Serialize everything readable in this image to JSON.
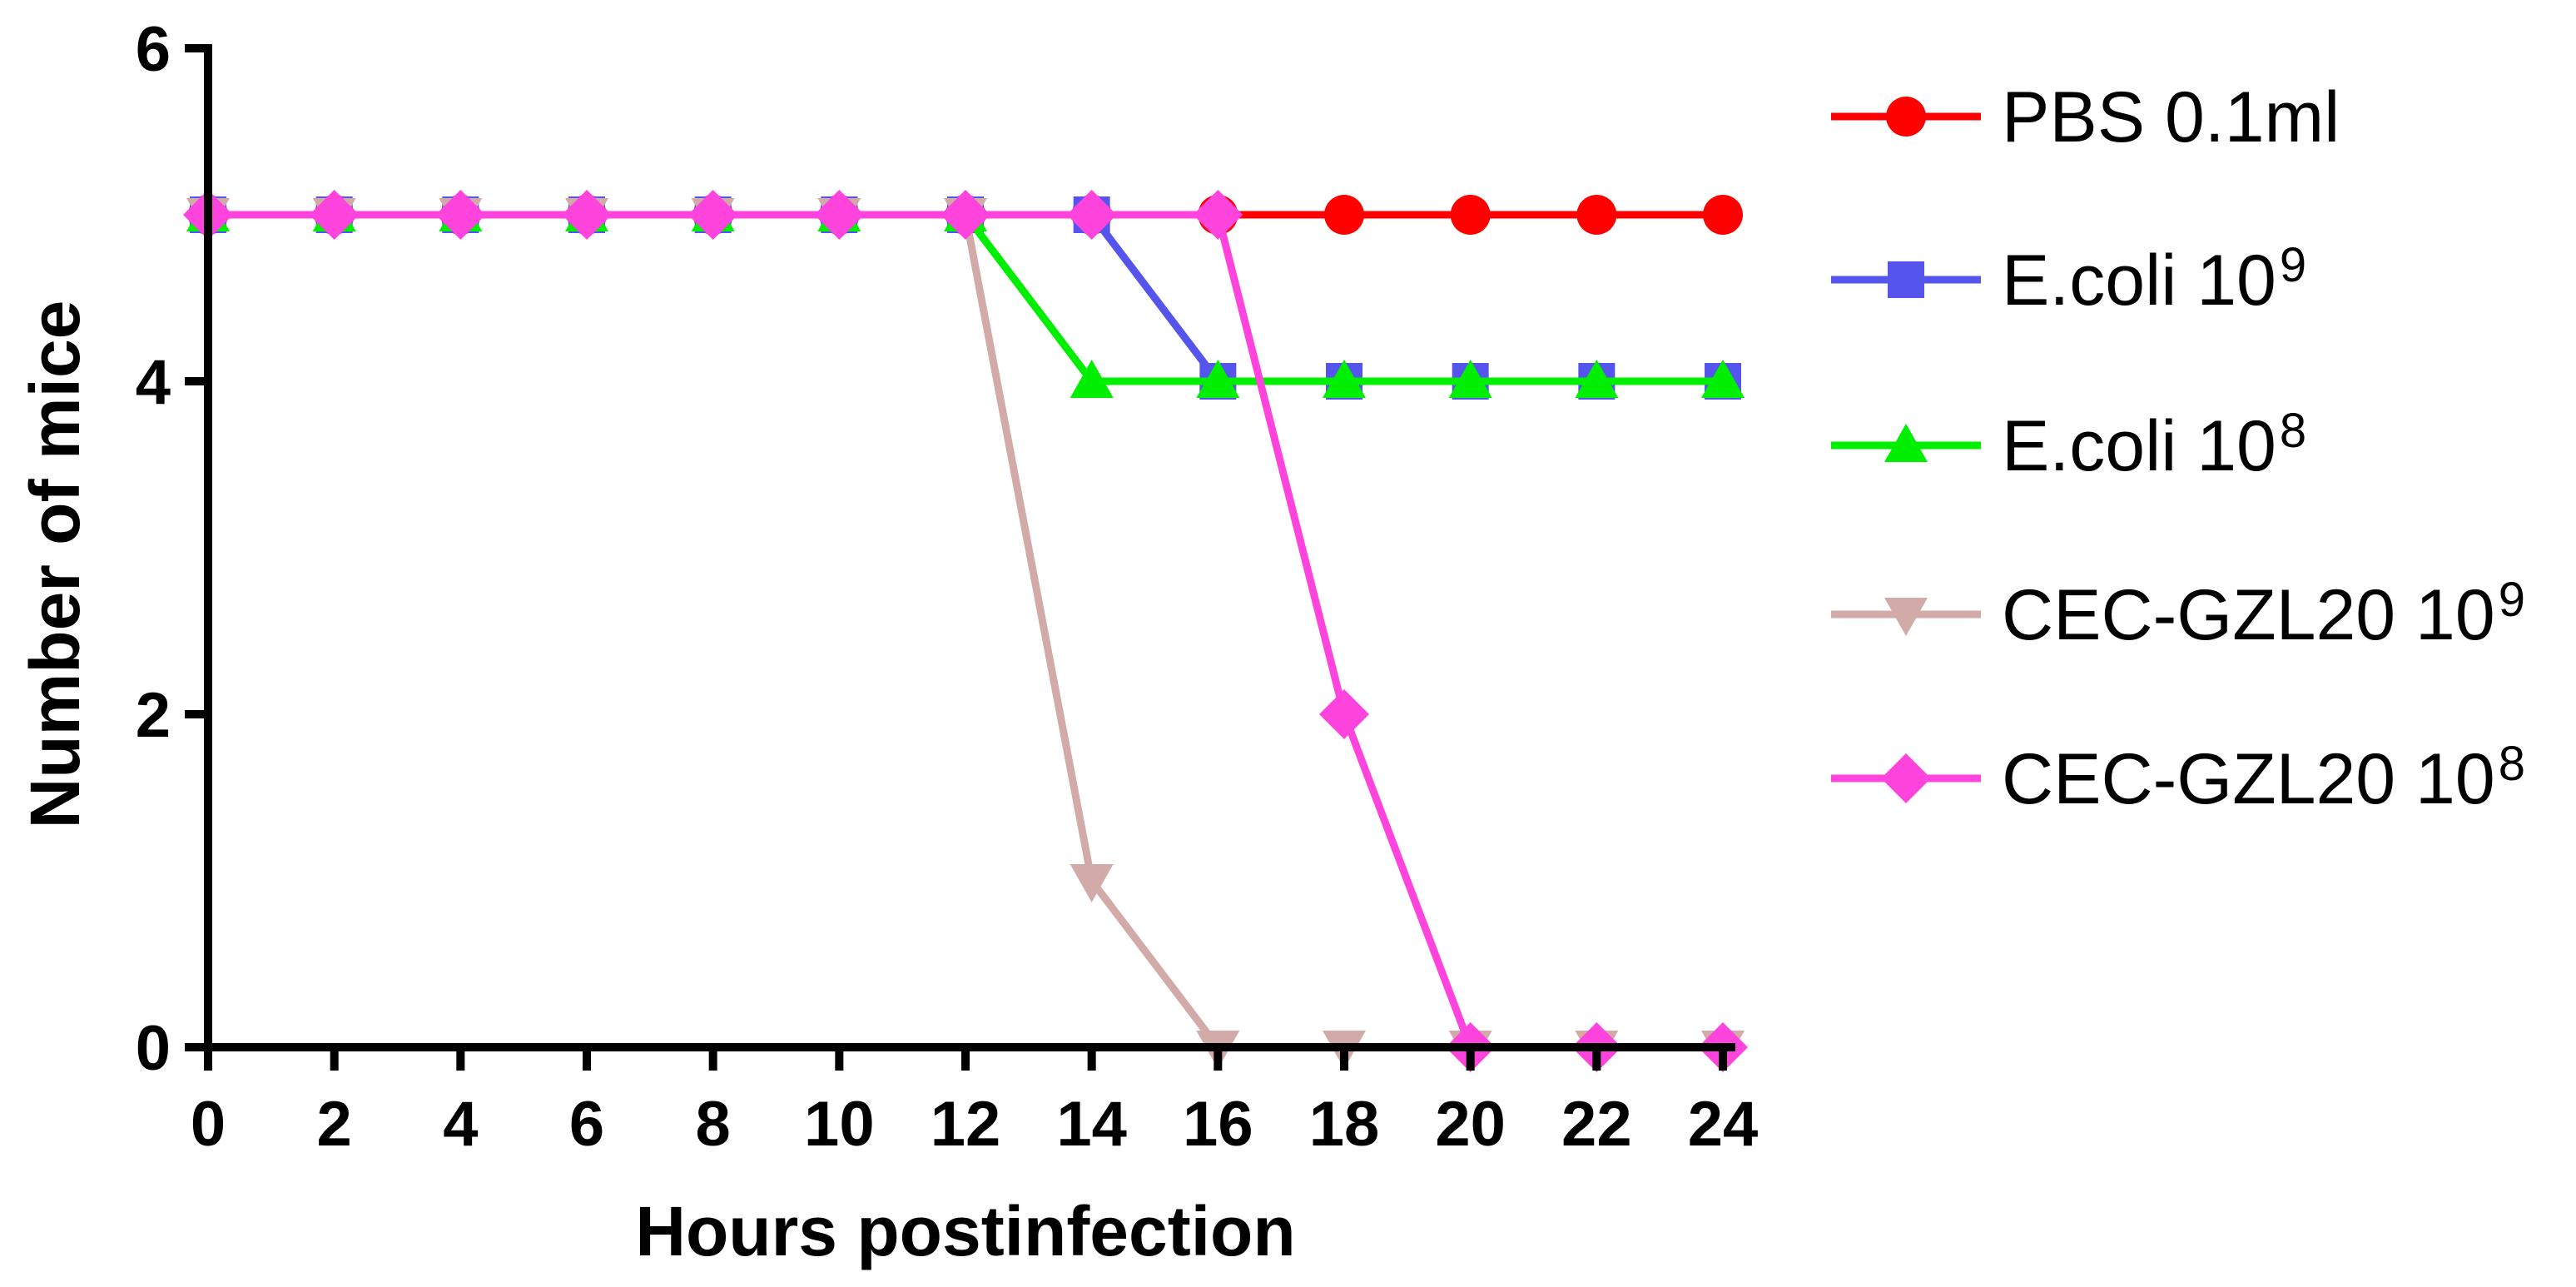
{
  "chart_data": {
    "type": "line",
    "title": "",
    "xlabel": "Hours postinfection",
    "ylabel": "Number of mice",
    "x": [
      0,
      2,
      4,
      6,
      8,
      10,
      12,
      14,
      16,
      18,
      20,
      22,
      24
    ],
    "xlim": [
      0,
      24
    ],
    "ylim": [
      0,
      6
    ],
    "xticks": [
      "0",
      "2",
      "4",
      "6",
      "8",
      "10",
      "12",
      "14",
      "16",
      "18",
      "20",
      "22",
      "24"
    ],
    "yticks": [
      "0",
      "2",
      "4",
      "6"
    ],
    "grid": false,
    "legend_position": "right",
    "series": [
      {
        "name": "PBS 0.1ml",
        "label_main": "PBS 0.1ml",
        "label_sup": "",
        "color": "#ff0000",
        "marker": "circle",
        "values": [
          5,
          5,
          5,
          5,
          5,
          5,
          5,
          5,
          5,
          5,
          5,
          5,
          5
        ]
      },
      {
        "name": "E.coli 10^9",
        "label_main": "E.coli 10",
        "label_sup": "9",
        "color": "#5555ee",
        "marker": "square",
        "values": [
          5,
          5,
          5,
          5,
          5,
          5,
          5,
          5,
          4,
          4,
          4,
          4,
          4
        ]
      },
      {
        "name": "E.coli 10^8",
        "label_main": "E.coli 10",
        "label_sup": "8",
        "color": "#00ee00",
        "marker": "triangle-up",
        "values": [
          5,
          5,
          5,
          5,
          5,
          5,
          5,
          4,
          4,
          4,
          4,
          4,
          4
        ]
      },
      {
        "name": "CEC-GZL20 10^9",
        "label_main": "CEC-GZL20 10",
        "label_sup": "9",
        "color": "#d2aaa8",
        "marker": "triangle-down",
        "values": [
          5,
          5,
          5,
          5,
          5,
          5,
          5,
          1,
          0,
          0,
          0,
          0,
          0
        ]
      },
      {
        "name": "CEC-GZL20 10^8",
        "label_main": "CEC-GZL20 10",
        "label_sup": "8",
        "color": "#ff44dd",
        "marker": "diamond",
        "values": [
          5,
          5,
          5,
          5,
          5,
          5,
          5,
          5,
          5,
          2,
          0,
          0,
          0
        ]
      }
    ]
  }
}
